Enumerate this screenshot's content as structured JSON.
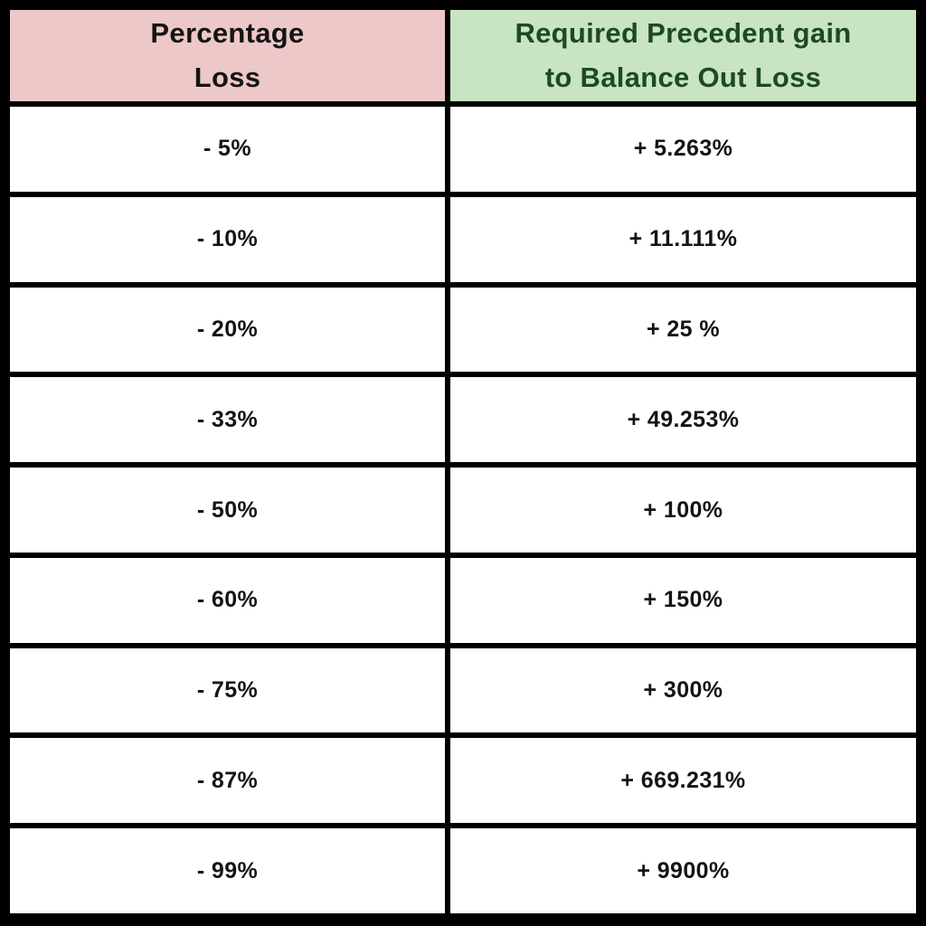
{
  "colors": {
    "border": "#000000",
    "header_loss_bg": "#edc8c9",
    "header_loss_text": "#141414",
    "header_gain_bg": "#c8e4c3",
    "header_gain_text": "#1d4a21",
    "cell_bg": "#ffffff",
    "body_text": "#141414"
  },
  "table": {
    "header": {
      "loss_line1": "Percentage",
      "loss_line2": "Loss",
      "gain_line1": "Required Precedent gain",
      "gain_line2": "to Balance Out Loss"
    },
    "rows": [
      {
        "loss": "- 5%",
        "gain": "+ 5.263%"
      },
      {
        "loss": "- 10%",
        "gain": "+ 11.111%"
      },
      {
        "loss": "- 20%",
        "gain": "+ 25 %"
      },
      {
        "loss": "- 33%",
        "gain": "+ 49.253%"
      },
      {
        "loss": "- 50%",
        "gain": "+ 100%"
      },
      {
        "loss": "- 60%",
        "gain": "+ 150%"
      },
      {
        "loss": "- 75%",
        "gain": "+ 300%"
      },
      {
        "loss": "- 87%",
        "gain": "+ 669.231%"
      },
      {
        "loss": "- 99%",
        "gain": "+ 9900%"
      }
    ]
  },
  "chart_data": {
    "type": "table",
    "title": "",
    "columns": [
      "Percentage Loss",
      "Required Precedent gain to Balance Out Loss"
    ],
    "rows": [
      [
        "- 5%",
        "+ 5.263%"
      ],
      [
        "- 10%",
        "+ 11.111%"
      ],
      [
        "- 20%",
        "+ 25 %"
      ],
      [
        "- 33%",
        "+ 49.253%"
      ],
      [
        "- 50%",
        "+ 100%"
      ],
      [
        "- 60%",
        "+ 150%"
      ],
      [
        "- 75%",
        "+ 300%"
      ],
      [
        "- 87%",
        "+ 669.231%"
      ],
      [
        "- 99%",
        "+ 9900%"
      ]
    ],
    "numeric": {
      "loss_percent": [
        -5,
        -10,
        -20,
        -33,
        -50,
        -60,
        -75,
        -87,
        -99
      ],
      "required_gain_percent": [
        5.263,
        11.111,
        25,
        49.253,
        100,
        150,
        300,
        669.231,
        9900
      ]
    }
  }
}
